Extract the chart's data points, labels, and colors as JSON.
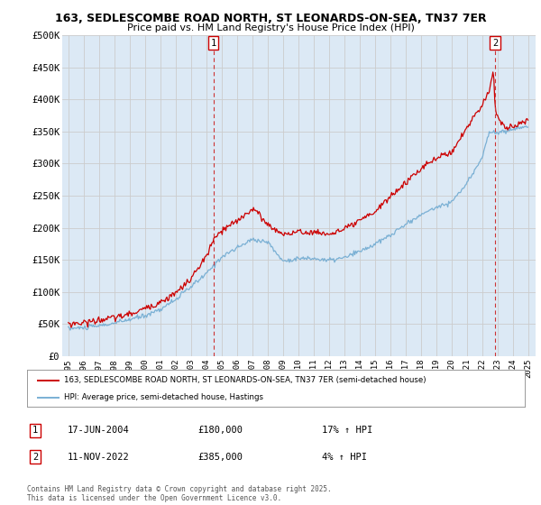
{
  "title1": "163, SEDLESCOMBE ROAD NORTH, ST LEONARDS-ON-SEA, TN37 7ER",
  "title2": "Price paid vs. HM Land Registry's House Price Index (HPI)",
  "background_color": "#ffffff",
  "plot_bg_color": "#dce9f5",
  "ylim": [
    0,
    500000
  ],
  "yticks": [
    0,
    50000,
    100000,
    150000,
    200000,
    250000,
    300000,
    350000,
    400000,
    450000,
    500000
  ],
  "ytick_labels": [
    "£0",
    "£50K",
    "£100K",
    "£150K",
    "£200K",
    "£250K",
    "£300K",
    "£350K",
    "£400K",
    "£450K",
    "£500K"
  ],
  "xtick_years": [
    1995,
    1996,
    1997,
    1998,
    1999,
    2000,
    2001,
    2002,
    2003,
    2004,
    2005,
    2006,
    2007,
    2008,
    2009,
    2010,
    2011,
    2012,
    2013,
    2014,
    2015,
    2016,
    2017,
    2018,
    2019,
    2020,
    2021,
    2022,
    2023,
    2024,
    2025
  ],
  "red_line_color": "#cc0000",
  "blue_line_color": "#7ab0d4",
  "marker1_x": 2004.46,
  "marker2_x": 2022.86,
  "legend_label1": "163, SEDLESCOMBE ROAD NORTH, ST LEONARDS-ON-SEA, TN37 7ER (semi-detached house)",
  "legend_label2": "HPI: Average price, semi-detached house, Hastings",
  "annotation1_label": "1",
  "annotation1_date": "17-JUN-2004",
  "annotation1_price": "£180,000",
  "annotation1_hpi": "17% ↑ HPI",
  "annotation2_label": "2",
  "annotation2_date": "11-NOV-2022",
  "annotation2_price": "£385,000",
  "annotation2_hpi": "4% ↑ HPI",
  "footer": "Contains HM Land Registry data © Crown copyright and database right 2025.\nThis data is licensed under the Open Government Licence v3.0.",
  "hpi_years": [
    1995,
    1996,
    1997,
    1998,
    1999,
    2000,
    2001,
    2002,
    2003,
    2004,
    2005,
    2006,
    2007,
    2008,
    2009,
    2010,
    2011,
    2012,
    2013,
    2014,
    2015,
    2016,
    2017,
    2018,
    2019,
    2020,
    2021,
    2022,
    2022.5,
    2023,
    2023.5,
    2024,
    2025
  ],
  "hpi_vals": [
    43000,
    44000,
    47000,
    51000,
    57000,
    63000,
    73000,
    88000,
    108000,
    128000,
    155000,
    168000,
    182000,
    178000,
    148000,
    152000,
    152000,
    149000,
    153000,
    163000,
    174000,
    188000,
    205000,
    220000,
    232000,
    240000,
    268000,
    310000,
    350000,
    348000,
    350000,
    354000,
    358000
  ],
  "red_years": [
    1995,
    1996,
    1997,
    1998,
    1999,
    2000,
    2001,
    2002,
    2003,
    2004.0,
    2004.46,
    2005,
    2006,
    2007,
    2007.5,
    2008,
    2009,
    2010,
    2011,
    2012,
    2013,
    2014,
    2015,
    2016,
    2017,
    2018,
    2019,
    2020,
    2021,
    2021.5,
    2022,
    2022.5,
    2022.75,
    2022.86,
    2023.1,
    2023.5,
    2024,
    2024.5,
    2025
  ],
  "red_vals": [
    50000,
    52000,
    56000,
    60000,
    65000,
    74000,
    84000,
    98000,
    120000,
    155000,
    180000,
    195000,
    210000,
    230000,
    220000,
    205000,
    190000,
    193000,
    193000,
    190000,
    197000,
    210000,
    225000,
    248000,
    270000,
    292000,
    308000,
    318000,
    355000,
    375000,
    390000,
    415000,
    450000,
    385000,
    370000,
    355000,
    358000,
    362000,
    368000
  ]
}
